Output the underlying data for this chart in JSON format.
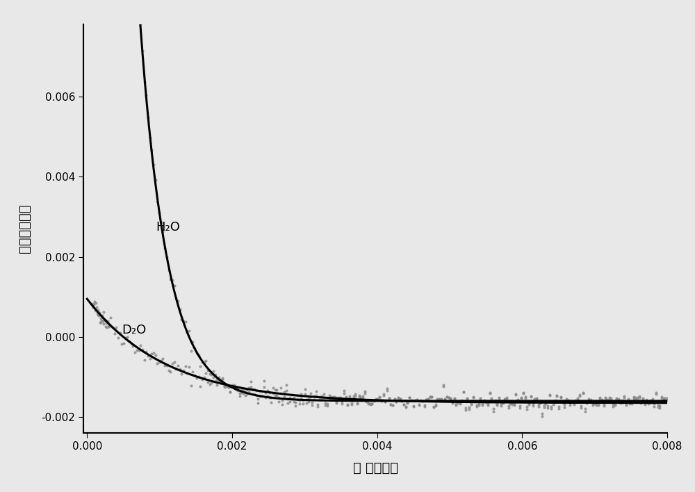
{
  "title": "",
  "xlabel": "时 间（秒）",
  "ylabel": "信号相对强度",
  "xlim": [
    -5e-05,
    0.008
  ],
  "ylim": [
    -0.0024,
    0.0078
  ],
  "xticks": [
    0.0,
    0.002,
    0.004,
    0.006,
    0.008
  ],
  "yticks": [
    -0.002,
    0.0,
    0.002,
    0.004,
    0.006
  ],
  "h2o_label": "H₂O",
  "d2o_label": "D₂O",
  "background": "#e8e8e8",
  "plot_bg": "#e8e8e8",
  "h2o_params": {
    "A": 0.065,
    "tau": 0.00038,
    "C": -0.0016
  },
  "d2o_params": {
    "A": 0.0026,
    "tau": 0.0011,
    "C": -0.00165
  },
  "noise_scale": 0.00012,
  "linewidth": 2.2,
  "scatter_alpha": 0.7,
  "scatter_size": 4
}
